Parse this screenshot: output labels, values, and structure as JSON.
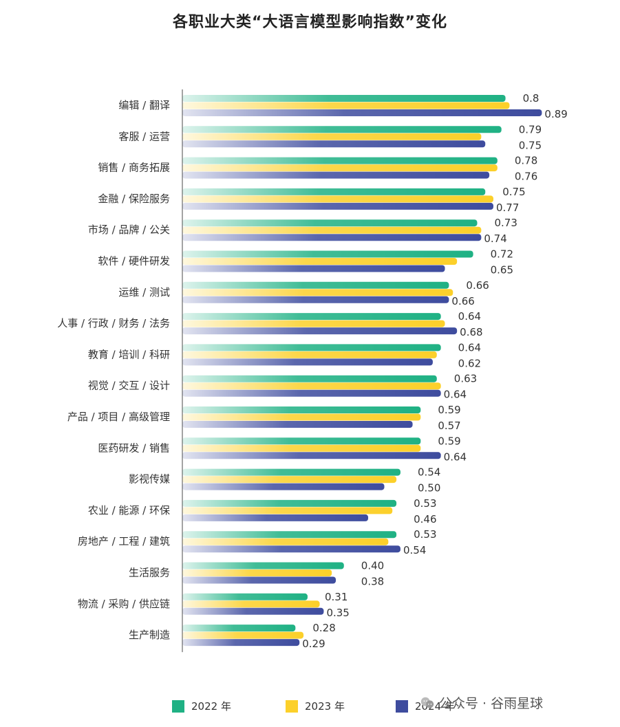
{
  "chart_data": {
    "type": "bar",
    "orientation": "horizontal",
    "title": "各职业大类“大语言模型影响指数”变化",
    "categories": [
      "编辑 / 翻译",
      "客服 / 运营",
      "销售 / 商务拓展",
      "金融 / 保险服务",
      "市场 / 品牌 / 公关",
      "软件 / 硬件研发",
      "运维 / 测试",
      "人事 / 行政 / 财务 / 法务",
      "教育 / 培训 / 科研",
      "视觉 / 交互 / 设计",
      "产品 / 项目 / 高级管理",
      "医药研发 / 销售",
      "影视传媒",
      "农业 / 能源 / 环保",
      "房地产 / 工程 / 建筑",
      "生活服务",
      "物流 / 采购 / 供应链",
      "生产制造"
    ],
    "series": [
      {
        "name": "2022 年",
        "color": "#1fb184",
        "values": [
          0.8,
          0.79,
          0.78,
          0.75,
          0.73,
          0.72,
          0.66,
          0.64,
          0.64,
          0.63,
          0.59,
          0.59,
          0.54,
          0.53,
          0.53,
          0.4,
          0.31,
          0.28
        ]
      },
      {
        "name": "2023 年",
        "color": "#fcd02a",
        "values": [
          0.81,
          0.74,
          0.78,
          0.77,
          0.74,
          0.68,
          0.67,
          0.65,
          0.63,
          0.64,
          0.59,
          0.59,
          0.53,
          0.52,
          0.51,
          0.37,
          0.34,
          0.3
        ]
      },
      {
        "name": "2024 年",
        "color": "#3e4c9e",
        "values": [
          0.89,
          0.75,
          0.76,
          0.77,
          0.74,
          0.65,
          0.66,
          0.68,
          0.62,
          0.64,
          0.57,
          0.64,
          0.5,
          0.46,
          0.54,
          0.38,
          0.35,
          0.29
        ]
      }
    ],
    "labels_top": [
      "0.8",
      "0.79",
      "0.78",
      "0.75",
      "0.73",
      "0.72",
      "0.66",
      "0.64",
      "0.64",
      "0.63",
      "0.59",
      "0.59",
      "0.54",
      "0.53",
      "0.53",
      "0.40",
      "0.31",
      "0.28"
    ],
    "labels_bottom": [
      "0.89",
      "0.75",
      "0.76",
      "0.77",
      "0.74",
      "0.65",
      "0.66",
      "0.68",
      "0.62",
      "0.64",
      "0.57",
      "0.64",
      "0.50",
      "0.46",
      "0.54",
      "0.38",
      "0.35",
      "0.29"
    ],
    "xlim": [
      0,
      1
    ],
    "legend_position": "bottom",
    "grid": false
  },
  "legend": [
    {
      "label": "2022 年",
      "color": "#1fb184"
    },
    {
      "label": "2023 年",
      "color": "#fcd02a"
    },
    {
      "label": "2024 年",
      "color": "#3e4c9e"
    }
  ],
  "watermark": {
    "text": "公众号 · 谷雨星球"
  }
}
